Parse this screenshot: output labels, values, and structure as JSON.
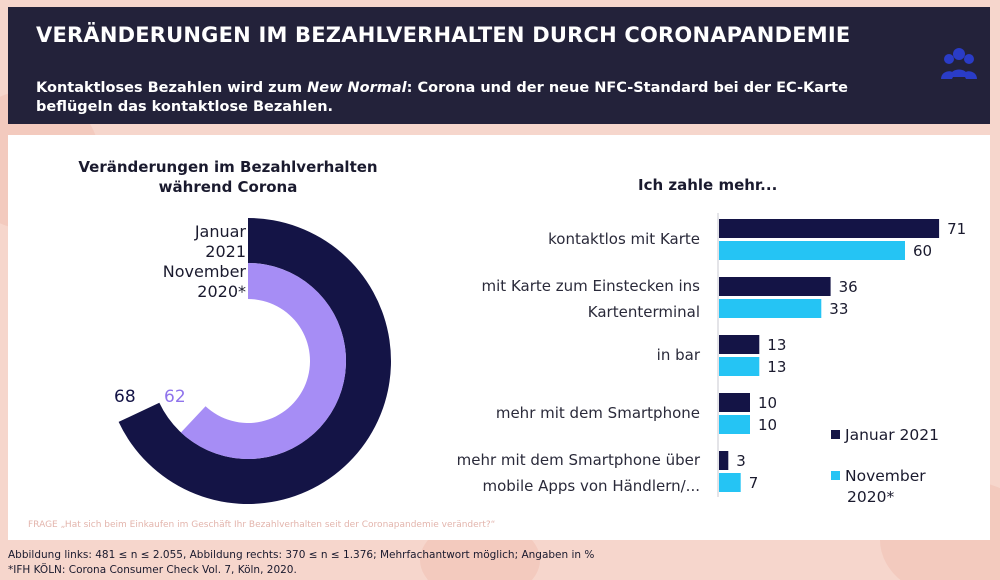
{
  "header": {
    "title": "VERÄNDERUNGEN IM BEZAHLVERHALTEN DURCH CORONAPANDEMIE",
    "subtitle_part1": "Kontaktloses Bezahlen wird zum ",
    "subtitle_em": "New Normal",
    "subtitle_part2": ": Corona und der neue NFC-Standard bei der EC-Karte beflügeln das kontaktlose Bezahlen."
  },
  "left_chart": {
    "title_line1": "Veränderungen im Bezahlverhalten",
    "title_line2": "während Corona",
    "ring_outer_label_line1": "Januar",
    "ring_outer_label_line2": "2021",
    "ring_inner_label_line1": "November",
    "ring_inner_label_line2": "2020*",
    "outer_value_label": "68",
    "inner_value_label": "62"
  },
  "right_chart": {
    "title": "Ich zahle mehr..."
  },
  "legend": {
    "jan": "Januar 2021",
    "nov_line1": "November",
    "nov_line2": "2020*"
  },
  "colors": {
    "header_bg": "#23223a",
    "jan": "#141446",
    "nov_bar": "#25c4f4",
    "nov_ring": "#a68df5"
  },
  "chart_data": [
    {
      "type": "pie",
      "subtype": "radial-ring",
      "title": "Veränderungen im Bezahlverhalten während Corona",
      "series": [
        {
          "name": "Januar 2021",
          "value": 68
        },
        {
          "name": "November 2020*",
          "value": 62
        }
      ]
    },
    {
      "type": "bar",
      "orientation": "horizontal",
      "title": "Ich zahle mehr...",
      "categories": [
        "kontaktlos mit Karte",
        "mit Karte zum Einstecken ins Kartenterminal",
        "in bar",
        "mehr mit dem Smartphone",
        "mehr mit dem Smartphone über mobile Apps von Händlern/..."
      ],
      "category_lines": [
        [
          "kontaktlos mit Karte"
        ],
        [
          "mit Karte zum Einstecken ins",
          "Kartenterminal"
        ],
        [
          "in bar"
        ],
        [
          "mehr mit dem Smartphone"
        ],
        [
          "mehr mit dem Smartphone über",
          "mobile Apps von Händlern/..."
        ]
      ],
      "series": [
        {
          "name": "Januar 2021",
          "values": [
            71,
            36,
            13,
            10,
            3
          ]
        },
        {
          "name": "November 2020*",
          "values": [
            60,
            33,
            13,
            10,
            7
          ]
        }
      ],
      "legend": "right"
    }
  ],
  "question": "FRAGE „Hat sich beim Einkaufen im Geschäft Ihr Bezahlverhalten seit der Coronapandemie verändert?“",
  "footnote_line1": "Abbildung links: 481 ≤ n ≤ 2.055, Abbildung rechts: 370 ≤ n ≤ 1.376; Mehrfachantwort möglich; Angaben in %",
  "footnote_line2": "*IFH KÖLN: Corona Consumer Check Vol. 7, Köln, 2020."
}
